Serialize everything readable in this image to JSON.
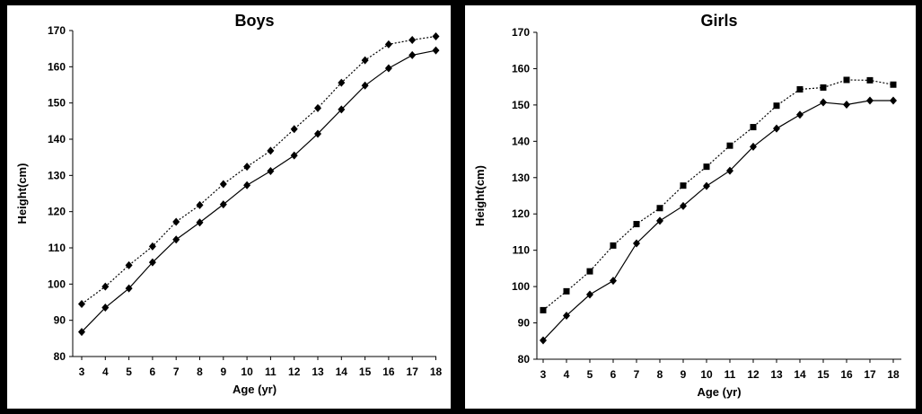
{
  "chart_data": [
    {
      "type": "line",
      "title": "Boys",
      "xlabel": "Age (yr)",
      "ylabel": "Height(cm)",
      "x": [
        3,
        4,
        5,
        6,
        7,
        8,
        9,
        10,
        11,
        12,
        13,
        14,
        15,
        16,
        17,
        18
      ],
      "ylim": [
        80,
        170
      ],
      "yticks": [
        80,
        90,
        100,
        110,
        120,
        130,
        140,
        150,
        160,
        170
      ],
      "grid": false,
      "legend": "none",
      "series": [
        {
          "style": "dotted",
          "marker": "diamond",
          "values": [
            94.5,
            99.3,
            105.2,
            110.4,
            117.2,
            121.8,
            127.6,
            132.4,
            136.8,
            142.8,
            148.6,
            155.6,
            161.8,
            166.2,
            167.4,
            168.4
          ]
        },
        {
          "style": "solid",
          "marker": "diamond",
          "values": [
            86.8,
            93.5,
            98.8,
            106.0,
            112.3,
            117.0,
            122.0,
            127.3,
            131.2,
            135.5,
            141.5,
            148.2,
            154.8,
            159.6,
            163.2,
            164.5
          ]
        }
      ]
    },
    {
      "type": "line",
      "title": "Girls",
      "xlabel": "Age (yr)",
      "ylabel": "Height(cm)",
      "x": [
        3,
        4,
        5,
        6,
        7,
        8,
        9,
        10,
        11,
        12,
        13,
        14,
        15,
        16,
        17,
        18
      ],
      "ylim": [
        80,
        170
      ],
      "yticks": [
        80,
        90,
        100,
        110,
        120,
        130,
        140,
        150,
        160,
        170
      ],
      "grid": false,
      "legend": "none",
      "series": [
        {
          "style": "dotted",
          "marker": "square",
          "values": [
            93.5,
            98.7,
            104.2,
            111.3,
            117.2,
            121.6,
            127.8,
            133.0,
            138.8,
            143.9,
            149.8,
            154.3,
            154.8,
            156.9,
            156.8,
            155.6
          ]
        },
        {
          "style": "solid",
          "marker": "diamond",
          "values": [
            85.2,
            92.0,
            97.8,
            101.6,
            111.9,
            118.1,
            122.2,
            127.7,
            131.9,
            138.5,
            143.5,
            147.3,
            150.7,
            150.1,
            151.2,
            151.2
          ]
        }
      ]
    }
  ]
}
